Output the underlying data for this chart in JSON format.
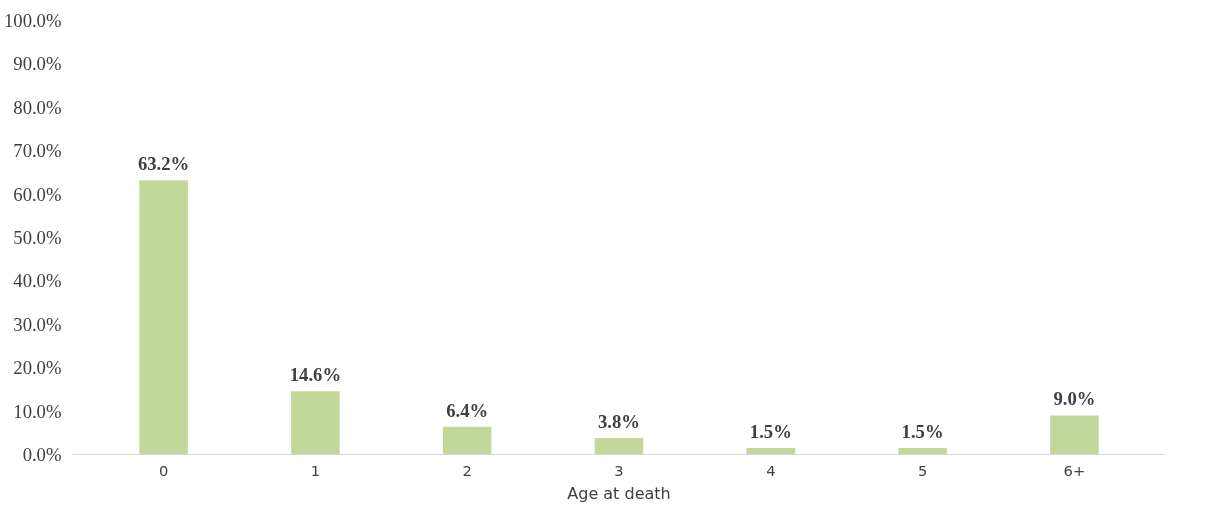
{
  "chart_data": {
    "type": "bar",
    "xlabel": "Age at death",
    "categories": [
      "0",
      "1",
      "2",
      "3",
      "4",
      "5",
      "6+"
    ],
    "values": [
      63.2,
      14.6,
      6.4,
      3.8,
      1.5,
      1.5,
      9.0
    ],
    "color": "#c4d79b",
    "ylim": [
      0,
      100
    ],
    "yticks": [
      {
        "value": 0,
        "label": "0.0%"
      },
      {
        "value": 10,
        "label": "10.0%"
      },
      {
        "value": 20,
        "label": "20.0%"
      },
      {
        "value": 30,
        "label": "30.0%"
      },
      {
        "value": 40,
        "label": "40.0%"
      },
      {
        "value": 50,
        "label": "50.0%"
      },
      {
        "value": 60,
        "label": "60.0%"
      },
      {
        "value": 70,
        "label": "70.0%"
      },
      {
        "value": 80,
        "label": "80.0%"
      },
      {
        "value": 90,
        "label": "90.0%"
      },
      {
        "value": 100,
        "label": "100.0%"
      }
    ],
    "value_labels": [
      "63.2%",
      "14.6%",
      "6.4%",
      "3.8%",
      "1.5%",
      "1.5%",
      "9.0%"
    ],
    "grid": false
  }
}
